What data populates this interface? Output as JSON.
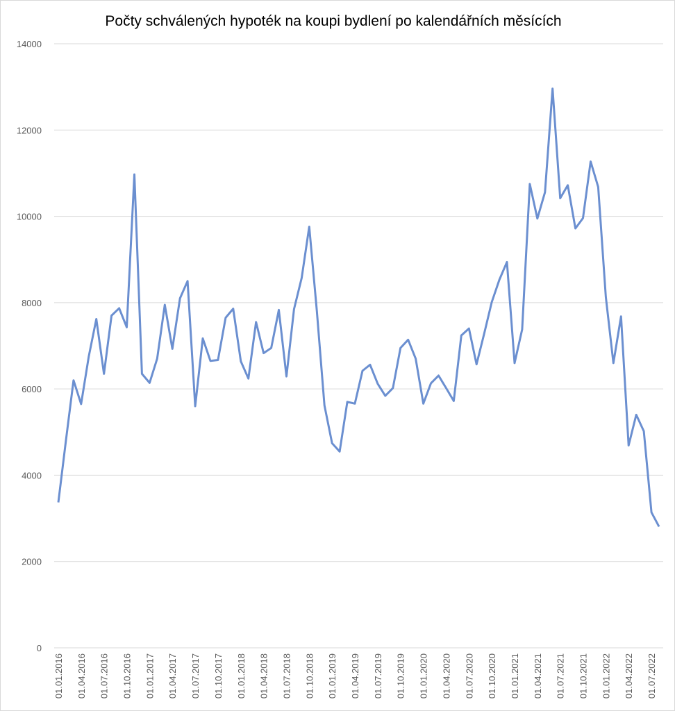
{
  "chart_data": {
    "type": "line",
    "title": "Počty schválených hypoték na koupi bydlení po kalendářních měsících",
    "categories": [
      "01.01.2016",
      null,
      null,
      "01.04.2016",
      null,
      null,
      "01.07.2016",
      null,
      null,
      "01.10.2016",
      null,
      null,
      "01.01.2017",
      null,
      null,
      "01.04.2017",
      null,
      null,
      "01.07.2017",
      null,
      null,
      "01.10.2017",
      null,
      null,
      "01.01.2018",
      null,
      null,
      "01.04.2018",
      null,
      null,
      "01.07.2018",
      null,
      null,
      "01.10.2018",
      null,
      null,
      "01.01.2019",
      null,
      null,
      "01.04.2019",
      null,
      null,
      "01.07.2019",
      null,
      null,
      "01.10.2019",
      null,
      null,
      "01.01.2020",
      null,
      null,
      "01.04.2020",
      null,
      null,
      "01.07.2020",
      null,
      null,
      "01.10.2020",
      null,
      null,
      "01.01.2021",
      null,
      null,
      "01.04.2021",
      null,
      null,
      "01.07.2021",
      null,
      null,
      "01.10.2021",
      null,
      null,
      "01.01.2022",
      null,
      null,
      "01.04.2022",
      null,
      null,
      "01.07.2022",
      null
    ],
    "series": [
      {
        "name": "Počty schválených hypoték",
        "color": "#6b8fd0",
        "values": [
          3370,
          4800,
          6200,
          5650,
          6750,
          7620,
          6350,
          7700,
          7870,
          7430,
          10970,
          6350,
          6140,
          6700,
          7950,
          6930,
          8100,
          8500,
          5600,
          7170,
          6650,
          6670,
          7650,
          7860,
          6640,
          6240,
          7550,
          6830,
          6950,
          7830,
          6290,
          7850,
          8570,
          9760,
          7800,
          5620,
          4740,
          4550,
          5700,
          5660,
          6420,
          6560,
          6120,
          5840,
          6020,
          6950,
          7140,
          6700,
          5660,
          6130,
          6310,
          6020,
          5720,
          7240,
          7400,
          6570,
          7280,
          8010,
          8530,
          8940,
          6600,
          7380,
          10750,
          9950,
          10560,
          12960,
          10420,
          10720,
          9720,
          9960,
          11270,
          10680,
          8130,
          6600,
          7680,
          4690,
          5400,
          5020,
          3140,
          2810
        ]
      }
    ],
    "ylim": [
      0,
      14000
    ],
    "yticks": [
      0,
      2000,
      4000,
      6000,
      8000,
      10000,
      12000,
      14000
    ],
    "grid": true
  }
}
